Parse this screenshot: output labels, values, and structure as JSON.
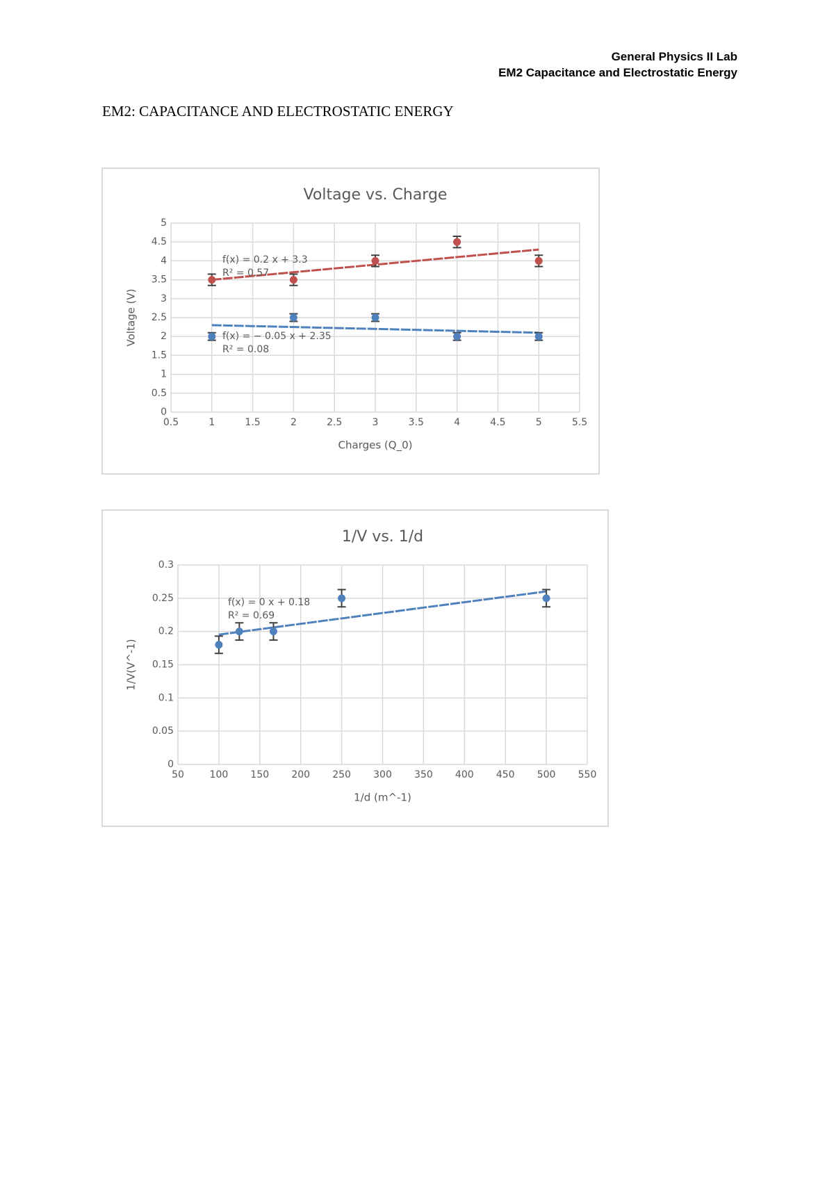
{
  "header": {
    "course": "General Physics II Lab",
    "experiment": "EM2 Capacitance and Electrostatic Energy"
  },
  "document_title": "EM2: CAPACITANCE AND ELECTROSTATIC ENERGY",
  "chart_data": [
    {
      "type": "scatter",
      "title": "Voltage vs. Charge",
      "x_label": "Charges (Q_0)",
      "y_label": "Voltage (V)",
      "x": [
        1,
        2,
        3,
        4,
        5
      ],
      "series": [
        {
          "color": "#c0504d",
          "values": [
            3.5,
            3.5,
            4,
            4.5,
            4
          ],
          "error": 0.15,
          "trendline": {
            "slope": 0.2,
            "intercept": 3.3,
            "equation": "f(x) = 0.2 x + 3.3",
            "r2": "R² = 0.57"
          }
        },
        {
          "color": "#4f81bd",
          "values": [
            2,
            2.5,
            2.5,
            2,
            2
          ],
          "error": 0.1,
          "trendline": {
            "slope": -0.05,
            "intercept": 2.35,
            "equation": "f(x) = − 0.05 x + 2.35",
            "r2": "R² = 0.08"
          }
        }
      ],
      "xlim": [
        0.5,
        5.5
      ],
      "xticks": [
        0.5,
        1,
        1.5,
        2,
        2.5,
        3,
        3.5,
        4,
        4.5,
        5,
        5.5
      ],
      "ylim": [
        0,
        5
      ],
      "yticks": [
        0,
        0.5,
        1,
        1.5,
        2,
        2.5,
        3,
        3.5,
        4,
        4.5,
        5
      ],
      "grid": true
    },
    {
      "type": "scatter",
      "title": "1/V vs. 1/d",
      "x_label": "1/d (m^-1)",
      "y_label": "1/V(V^-1)",
      "x": [
        100,
        125,
        166.7,
        250,
        500
      ],
      "series": [
        {
          "color": "#4f81bd",
          "values": [
            0.18,
            0.2,
            0.2,
            0.25,
            0.25
          ],
          "error": 0.013,
          "trendline": {
            "slope": 0.0001625,
            "intercept": 0.179,
            "equation": "f(x) = 0 x + 0.18",
            "r2": "R² = 0.69"
          }
        }
      ],
      "xlim": [
        50,
        550
      ],
      "xticks": [
        50,
        100,
        150,
        200,
        250,
        300,
        350,
        400,
        450,
        500,
        550
      ],
      "ylim": [
        0,
        0.3
      ],
      "yticks": [
        0,
        0.05,
        0.1,
        0.15,
        0.2,
        0.25,
        0.3
      ],
      "grid": true
    }
  ]
}
